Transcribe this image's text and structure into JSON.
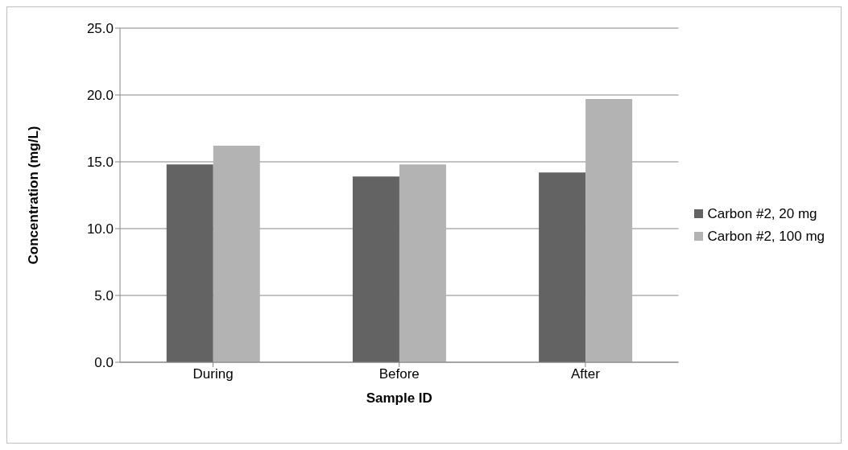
{
  "chart_data": {
    "type": "bar",
    "xlabel": "Sample ID",
    "ylabel": "Concentration (mg/L)",
    "categories": [
      "During",
      "Before",
      "After"
    ],
    "series": [
      {
        "name": "Carbon #2, 20 mg",
        "color": "#636363",
        "values": [
          14.8,
          13.9,
          14.2
        ]
      },
      {
        "name": "Carbon #2, 100 mg",
        "color": "#b3b3b3",
        "values": [
          16.2,
          14.8,
          19.7
        ]
      }
    ],
    "ylim": [
      0,
      25
    ],
    "yticks": [
      {
        "value": 0,
        "label": "0.0"
      },
      {
        "value": 5,
        "label": "5.0"
      },
      {
        "value": 10,
        "label": "10.0"
      },
      {
        "value": 15,
        "label": "15.0"
      },
      {
        "value": 20,
        "label": "20.0"
      },
      {
        "value": 25,
        "label": "25.0"
      }
    ],
    "grid": "y",
    "legend": "right"
  }
}
